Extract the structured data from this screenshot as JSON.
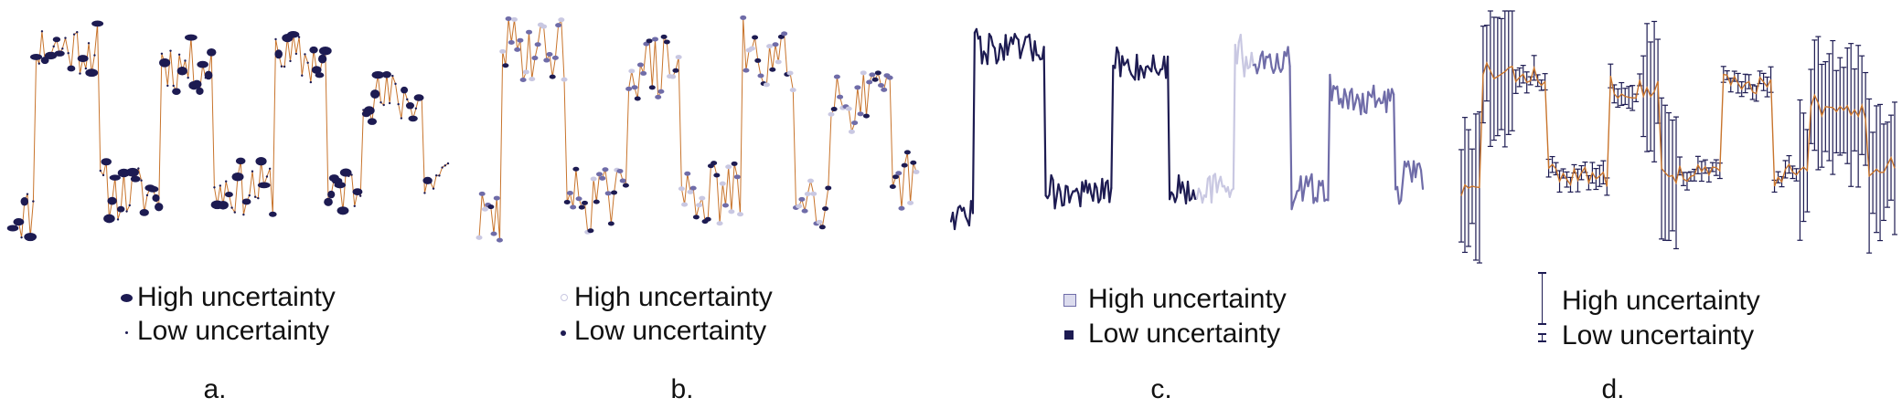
{
  "colors": {
    "line": "#c8742c",
    "glyph_dark": "#1d1b52",
    "glyph_mid": "#6f6ca8",
    "glyph_light": "#c9c8e2"
  },
  "panels": [
    {
      "label": "a.",
      "legend": {
        "high": "High uncertainty",
        "low": "Low uncertainty"
      }
    },
    {
      "label": "b.",
      "legend": {
        "high": "High uncertainty",
        "low": "Low uncertainty"
      }
    },
    {
      "label": "c.",
      "legend": {
        "high": "High uncertainty",
        "low": "Low uncertainty"
      }
    },
    {
      "label": "d.",
      "legend": {
        "high": "High uncertainty",
        "low": "Low uncertainty"
      }
    }
  ]
}
